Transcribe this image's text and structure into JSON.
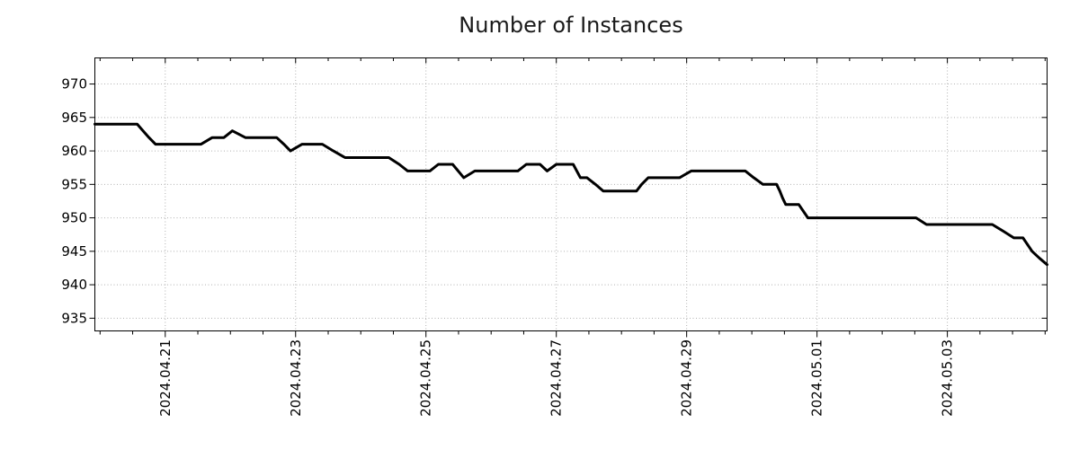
{
  "chart_data": {
    "type": "line",
    "title": "Number of Instances",
    "x_unit": "days since 2024-04-20 00:00",
    "xlim": [
      -0.08,
      14.53
    ],
    "ylim": [
      933.1,
      973.9
    ],
    "y_ticks": [
      935,
      940,
      945,
      950,
      955,
      960,
      965,
      970
    ],
    "x_major_ticks": [
      {
        "day": 1,
        "label": "2024.04.21"
      },
      {
        "day": 3,
        "label": "2024.04.23"
      },
      {
        "day": 5,
        "label": "2024.04.25"
      },
      {
        "day": 7,
        "label": "2024.04.27"
      },
      {
        "day": 9,
        "label": "2024.04.29"
      },
      {
        "day": 11,
        "label": "2024.05.01"
      },
      {
        "day": 13,
        "label": "2024.05.03"
      }
    ],
    "x_minor_tick_step": 0.5,
    "grid": "dotted",
    "legend": "none",
    "series": [
      {
        "name": "instances",
        "color": "#000000",
        "points": [
          [
            -0.08,
            964
          ],
          [
            0.57,
            964
          ],
          [
            0.66,
            963
          ],
          [
            0.75,
            962
          ],
          [
            0.85,
            961
          ],
          [
            1.55,
            961
          ],
          [
            1.72,
            962
          ],
          [
            1.9,
            962
          ],
          [
            2.03,
            963
          ],
          [
            2.23,
            962
          ],
          [
            2.71,
            962
          ],
          [
            2.82,
            961
          ],
          [
            2.92,
            960
          ],
          [
            3.1,
            961
          ],
          [
            3.41,
            961
          ],
          [
            3.58,
            960
          ],
          [
            3.76,
            959
          ],
          [
            4.43,
            959
          ],
          [
            4.59,
            958
          ],
          [
            4.72,
            957
          ],
          [
            5.06,
            957
          ],
          [
            5.19,
            958
          ],
          [
            5.41,
            958
          ],
          [
            5.58,
            956
          ],
          [
            5.75,
            957
          ],
          [
            6.41,
            957
          ],
          [
            6.54,
            958
          ],
          [
            6.75,
            958
          ],
          [
            6.86,
            957
          ],
          [
            7.0,
            958
          ],
          [
            7.26,
            958
          ],
          [
            7.37,
            956
          ],
          [
            7.47,
            956
          ],
          [
            7.6,
            955
          ],
          [
            7.72,
            954
          ],
          [
            8.23,
            954
          ],
          [
            8.31,
            955
          ],
          [
            8.41,
            956
          ],
          [
            8.89,
            956
          ],
          [
            9.07,
            957
          ],
          [
            9.9,
            957
          ],
          [
            10.03,
            956
          ],
          [
            10.17,
            955
          ],
          [
            10.38,
            955
          ],
          [
            10.43,
            954
          ],
          [
            10.47,
            953
          ],
          [
            10.52,
            952
          ],
          [
            10.72,
            952
          ],
          [
            10.79,
            951
          ],
          [
            10.86,
            950
          ],
          [
            12.52,
            950
          ],
          [
            12.68,
            949
          ],
          [
            13.69,
            949
          ],
          [
            13.86,
            948
          ],
          [
            14.02,
            947
          ],
          [
            14.16,
            947
          ],
          [
            14.3,
            945
          ],
          [
            14.41,
            944
          ],
          [
            14.53,
            943
          ]
        ]
      }
    ]
  },
  "colors": {
    "line": "#000000",
    "grid": "#b0b0b0",
    "axis": "#000000",
    "text": "#000000",
    "background": "#ffffff"
  }
}
